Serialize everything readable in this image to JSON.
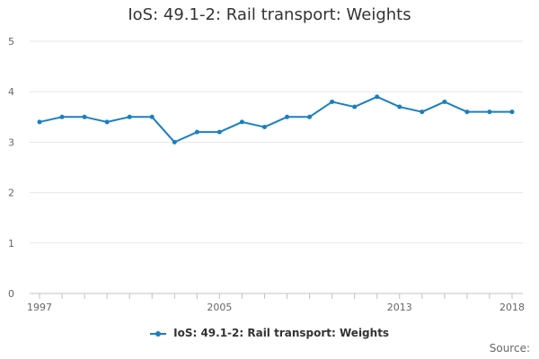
{
  "colors": {
    "series": "#1a7fc1",
    "axis": "#c0c0c0",
    "tick_label": "#666666"
  },
  "legend": {
    "label": "IoS: 49.1-2: Rail transport: Weights"
  },
  "credit": {
    "text": "Source:"
  },
  "chart_data": {
    "type": "line",
    "title": "IoS: 49.1-2: Rail transport: Weights",
    "xlabel": "",
    "ylabel": "",
    "x": [
      1997,
      1998,
      1999,
      2000,
      2001,
      2002,
      2003,
      2004,
      2005,
      2006,
      2007,
      2008,
      2009,
      2010,
      2011,
      2012,
      2013,
      2014,
      2015,
      2016,
      2017,
      2018
    ],
    "x_tick_labels": [
      "1997",
      "2005",
      "2013",
      "2018"
    ],
    "series": [
      {
        "name": "IoS: 49.1-2: Rail transport: Weights",
        "values": [
          3.4,
          3.5,
          3.5,
          3.4,
          3.5,
          3.5,
          3.0,
          3.2,
          3.2,
          3.4,
          3.3,
          3.5,
          3.5,
          3.8,
          3.7,
          3.9,
          3.7,
          3.6,
          3.8,
          3.6,
          3.6,
          3.6
        ]
      }
    ],
    "y_ticks": [
      0,
      1,
      2,
      3,
      4,
      5
    ],
    "ylim": [
      0,
      5
    ],
    "grid": true,
    "legend_position": "bottom"
  }
}
